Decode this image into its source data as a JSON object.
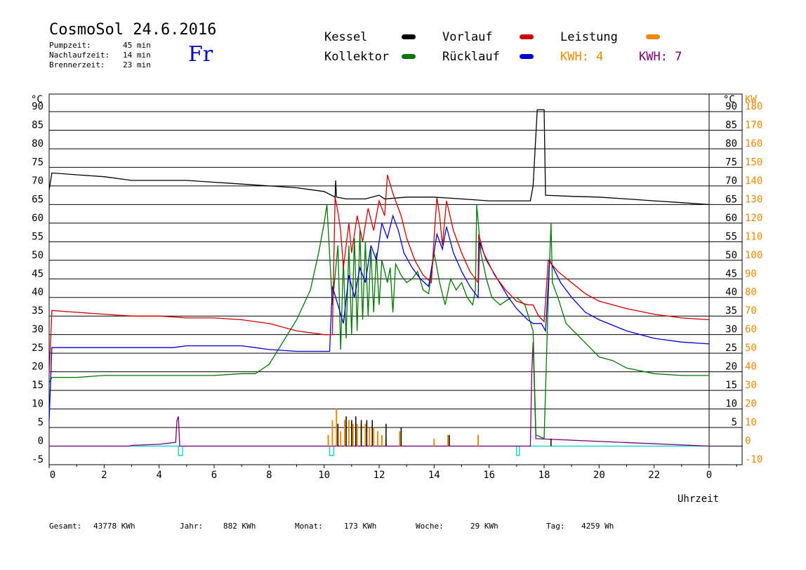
{
  "header": {
    "title": "CosmoSol 24.6.2016",
    "day": "Fr",
    "info": [
      {
        "label": "Pumpzeit:",
        "value": "45 min"
      },
      {
        "label": "Nachlaufzeit:",
        "value": "14 min"
      },
      {
        "label": "Brennerzeit:",
        "value": "23 min"
      }
    ]
  },
  "legend": {
    "kessel": "Kessel",
    "kollektor": "Kollektor",
    "vorlauf": "Vorlauf",
    "ruecklauf": "Rücklauf",
    "leistung": "Leistung",
    "kwh1": "KWH: 4",
    "kwh2": "KWH: 7"
  },
  "colors": {
    "kessel": "#000000",
    "kollektor": "#007700",
    "vorlauf": "#cc0000",
    "ruecklauf": "#0000cc",
    "leistung": "#ee8800",
    "kwh2": "#770077",
    "brenner": "#00cccc"
  },
  "footer": {
    "gesamt_label": "Gesamt:",
    "gesamt_value": "43778 KWh",
    "jahr_label": "Jahr:",
    "jahr_value": "882 KWh",
    "monat_label": "Monat:",
    "monat_value": "173 KWh",
    "woche_label": "Woche:",
    "woche_value": "29 KWh",
    "tag_label": "Tag:",
    "tag_value": "4259 Wh"
  },
  "chart_data": {
    "type": "line",
    "xlabel": "Uhrzeit",
    "ylabel_left": "°C",
    "ylabel_right_temp": "°C",
    "ylabel_right_power": "KW",
    "xlim": [
      0,
      24
    ],
    "ylim": [
      -5,
      95
    ],
    "xticks": [
      "0",
      "2",
      "4",
      "6",
      "8",
      "10",
      "12",
      "14",
      "16",
      "18",
      "20",
      "22",
      "0"
    ],
    "yticks_left": [
      "-5",
      "0",
      "5",
      "10",
      "15",
      "20",
      "25",
      "30",
      "35",
      "40",
      "45",
      "50",
      "55",
      "60",
      "65",
      "70",
      "75",
      "80",
      "85",
      "90"
    ],
    "yticks_right_temp": [
      "5",
      "10",
      "15",
      "20",
      "25",
      "30",
      "35",
      "40",
      "45",
      "50",
      "55",
      "60",
      "65",
      "70",
      "75",
      "80",
      "85",
      "90"
    ],
    "yticks_right_power": [
      "-10",
      "0",
      "10",
      "20",
      "30",
      "40",
      "50",
      "60",
      "70",
      "80",
      "90",
      "100",
      "110",
      "120",
      "130",
      "140",
      "150",
      "160",
      "170",
      "180"
    ],
    "grid": true,
    "series": [
      {
        "name": "Kessel",
        "key": "kessel",
        "points": [
          [
            0,
            69
          ],
          [
            0.1,
            73.5
          ],
          [
            1,
            73
          ],
          [
            2,
            72.5
          ],
          [
            3,
            71.5
          ],
          [
            4,
            71.5
          ],
          [
            5,
            71.5
          ],
          [
            6,
            71
          ],
          [
            7,
            70.5
          ],
          [
            8,
            70
          ],
          [
            9,
            69.5
          ],
          [
            10,
            68.5
          ],
          [
            10.4,
            67
          ],
          [
            10.42,
            71.5
          ],
          [
            10.45,
            67
          ],
          [
            10.8,
            66.5
          ],
          [
            11.5,
            66.5
          ],
          [
            12,
            67.5
          ],
          [
            12.2,
            66.5
          ],
          [
            13,
            67
          ],
          [
            14,
            67
          ],
          [
            15,
            66.5
          ],
          [
            16,
            66
          ],
          [
            17,
            66
          ],
          [
            17.5,
            66
          ],
          [
            17.6,
            70
          ],
          [
            17.75,
            90.5
          ],
          [
            18,
            90.5
          ],
          [
            18.05,
            67.5
          ],
          [
            19,
            67.2
          ],
          [
            20,
            67
          ],
          [
            21,
            66.5
          ],
          [
            22,
            66
          ],
          [
            23,
            65.5
          ],
          [
            24,
            65
          ]
        ]
      },
      {
        "name": "Vorlauf",
        "key": "vorlauf",
        "points": [
          [
            0,
            19
          ],
          [
            0.1,
            36.5
          ],
          [
            1,
            36
          ],
          [
            2,
            35.5
          ],
          [
            3,
            35
          ],
          [
            4,
            35
          ],
          [
            5,
            34.5
          ],
          [
            6,
            34.5
          ],
          [
            7,
            34
          ],
          [
            8,
            33
          ],
          [
            9,
            31
          ],
          [
            10,
            30
          ],
          [
            10.3,
            30
          ],
          [
            10.4,
            67
          ],
          [
            10.5,
            63
          ],
          [
            10.6,
            58
          ],
          [
            10.7,
            48
          ],
          [
            10.9,
            60
          ],
          [
            11,
            52
          ],
          [
            11.2,
            62
          ],
          [
            11.4,
            55
          ],
          [
            11.6,
            64
          ],
          [
            11.8,
            58
          ],
          [
            12,
            66
          ],
          [
            12.2,
            62
          ],
          [
            12.3,
            73
          ],
          [
            12.5,
            68
          ],
          [
            12.8,
            62
          ],
          [
            13,
            56
          ],
          [
            13.3,
            50
          ],
          [
            13.6,
            46
          ],
          [
            13.9,
            44
          ],
          [
            14,
            56
          ],
          [
            14.1,
            67
          ],
          [
            14.2,
            62
          ],
          [
            14.3,
            54
          ],
          [
            14.45,
            66
          ],
          [
            14.7,
            58
          ],
          [
            15,
            52
          ],
          [
            15.3,
            47
          ],
          [
            15.6,
            44
          ],
          [
            15.62,
            57
          ],
          [
            15.8,
            52
          ],
          [
            16.2,
            46
          ],
          [
            16.6,
            42
          ],
          [
            17,
            39
          ],
          [
            17.4,
            38
          ],
          [
            17.6,
            38
          ],
          [
            17.8,
            35
          ],
          [
            18,
            33.5
          ],
          [
            18.15,
            50
          ],
          [
            18.5,
            47
          ],
          [
            19,
            44
          ],
          [
            19.5,
            41
          ],
          [
            20,
            39
          ],
          [
            21,
            37
          ],
          [
            22,
            35.5
          ],
          [
            23,
            34.5
          ],
          [
            24,
            34
          ]
        ]
      },
      {
        "name": "Rücklauf",
        "key": "ruecklauf",
        "points": [
          [
            0,
            7
          ],
          [
            0.1,
            26.5
          ],
          [
            1,
            26.5
          ],
          [
            2,
            26.5
          ],
          [
            3,
            26.5
          ],
          [
            4,
            26.5
          ],
          [
            4.5,
            26.5
          ],
          [
            5,
            27
          ],
          [
            6,
            27
          ],
          [
            7,
            27
          ],
          [
            7.5,
            26.5
          ],
          [
            8,
            26
          ],
          [
            9,
            25.5
          ],
          [
            10,
            25.5
          ],
          [
            10.2,
            25.5
          ],
          [
            10.3,
            43
          ],
          [
            10.5,
            38
          ],
          [
            10.7,
            33
          ],
          [
            10.9,
            46
          ],
          [
            11.1,
            40
          ],
          [
            11.3,
            48
          ],
          [
            11.5,
            44
          ],
          [
            11.7,
            54
          ],
          [
            11.9,
            50
          ],
          [
            12.1,
            60
          ],
          [
            12.3,
            56
          ],
          [
            12.5,
            62
          ],
          [
            12.7,
            58
          ],
          [
            12.9,
            52
          ],
          [
            13.2,
            48
          ],
          [
            13.5,
            45
          ],
          [
            13.8,
            43
          ],
          [
            13.95,
            50
          ],
          [
            14.1,
            57
          ],
          [
            14.3,
            53
          ],
          [
            14.45,
            59
          ],
          [
            14.7,
            52
          ],
          [
            15,
            47
          ],
          [
            15.3,
            43
          ],
          [
            15.6,
            40
          ],
          [
            15.65,
            55
          ],
          [
            15.9,
            50
          ],
          [
            16.3,
            45
          ],
          [
            16.7,
            40
          ],
          [
            17,
            37
          ],
          [
            17.4,
            34
          ],
          [
            17.6,
            33
          ],
          [
            17.9,
            33
          ],
          [
            18.05,
            31
          ],
          [
            18.2,
            50
          ],
          [
            18.6,
            44
          ],
          [
            19,
            40
          ],
          [
            19.5,
            36
          ],
          [
            20,
            34
          ],
          [
            21,
            31
          ],
          [
            22,
            29
          ],
          [
            23,
            28
          ],
          [
            24,
            27.5
          ]
        ]
      },
      {
        "name": "Kollektor",
        "key": "kollektor",
        "points": [
          [
            0,
            17
          ],
          [
            0.1,
            18.5
          ],
          [
            1,
            18.5
          ],
          [
            2,
            19
          ],
          [
            3,
            19
          ],
          [
            4,
            19
          ],
          [
            5,
            19
          ],
          [
            6,
            19
          ],
          [
            7,
            19.5
          ],
          [
            7.5,
            19.5
          ],
          [
            8,
            22
          ],
          [
            8.5,
            28
          ],
          [
            9,
            34
          ],
          [
            9.5,
            42
          ],
          [
            9.8,
            52
          ],
          [
            10,
            60
          ],
          [
            10.1,
            65
          ],
          [
            10.3,
            38
          ],
          [
            10.5,
            54
          ],
          [
            10.6,
            26
          ],
          [
            10.7,
            50
          ],
          [
            10.8,
            29
          ],
          [
            10.9,
            54
          ],
          [
            11,
            30
          ],
          [
            11.1,
            56
          ],
          [
            11.2,
            31
          ],
          [
            11.3,
            58
          ],
          [
            11.4,
            34
          ],
          [
            11.5,
            55
          ],
          [
            11.6,
            35
          ],
          [
            11.7,
            53
          ],
          [
            11.8,
            36
          ],
          [
            11.9,
            52
          ],
          [
            12,
            38
          ],
          [
            12.1,
            50
          ],
          [
            12.3,
            44
          ],
          [
            12.4,
            48
          ],
          [
            12.5,
            36
          ],
          [
            12.6,
            49
          ],
          [
            12.8,
            46
          ],
          [
            13,
            44
          ],
          [
            13.2,
            45
          ],
          [
            13.4,
            47
          ],
          [
            13.6,
            42
          ],
          [
            13.8,
            41
          ],
          [
            14,
            52
          ],
          [
            14.2,
            44
          ],
          [
            14.4,
            38
          ],
          [
            14.6,
            45
          ],
          [
            14.8,
            42
          ],
          [
            15,
            44
          ],
          [
            15.2,
            40
          ],
          [
            15.4,
            38
          ],
          [
            15.5,
            42
          ],
          [
            15.55,
            65
          ],
          [
            15.7,
            52
          ],
          [
            15.9,
            45
          ],
          [
            16.1,
            40
          ],
          [
            16.4,
            38
          ],
          [
            16.8,
            40
          ],
          [
            17,
            40
          ],
          [
            17.3,
            38
          ],
          [
            17.6,
            31
          ],
          [
            17.7,
            3
          ],
          [
            18,
            2
          ],
          [
            18.15,
            40
          ],
          [
            18.25,
            60
          ],
          [
            18.3,
            44
          ],
          [
            18.5,
            40
          ],
          [
            18.8,
            33
          ],
          [
            19.2,
            30
          ],
          [
            19.6,
            27
          ],
          [
            20,
            24
          ],
          [
            20.5,
            23
          ],
          [
            21,
            21
          ],
          [
            22,
            19.5
          ],
          [
            23,
            19
          ],
          [
            24,
            19
          ]
        ]
      },
      {
        "name": "KWH: 7",
        "key": "kwh2",
        "points": [
          [
            0,
            0
          ],
          [
            2.9,
            0
          ],
          [
            3,
            0.2
          ],
          [
            4,
            0.5
          ],
          [
            4.6,
            1
          ],
          [
            4.65,
            7
          ],
          [
            4.7,
            8
          ],
          [
            4.75,
            0
          ],
          [
            17.5,
            0
          ],
          [
            17.55,
            20
          ],
          [
            17.6,
            28
          ],
          [
            17.7,
            2
          ],
          [
            24,
            0
          ]
        ]
      },
      {
        "name": "Brenner",
        "key": "brenner",
        "points": [
          [
            0,
            0
          ],
          [
            4.7,
            0
          ],
          [
            4.7,
            -2.5
          ],
          [
            4.85,
            -2.5
          ],
          [
            4.85,
            0
          ],
          [
            10.2,
            0
          ],
          [
            10.2,
            -2.5
          ],
          [
            10.35,
            -2.5
          ],
          [
            10.35,
            0
          ],
          [
            17.0,
            0
          ],
          [
            17.0,
            -2.5
          ],
          [
            17.1,
            -2.5
          ],
          [
            17.1,
            0
          ],
          [
            24,
            0
          ]
        ]
      }
    ],
    "leistung_bars": [
      [
        10.15,
        3
      ],
      [
        10.3,
        7
      ],
      [
        10.45,
        10
      ],
      [
        10.6,
        4
      ],
      [
        10.75,
        7
      ],
      [
        10.9,
        7
      ],
      [
        11.05,
        6
      ],
      [
        11.2,
        6
      ],
      [
        11.35,
        6
      ],
      [
        11.5,
        6
      ],
      [
        11.65,
        5
      ],
      [
        11.8,
        5
      ],
      [
        11.95,
        4
      ],
      [
        12.1,
        3
      ],
      [
        12.25,
        2
      ],
      [
        12.75,
        4
      ],
      [
        14,
        2
      ],
      [
        14.5,
        3
      ],
      [
        15.6,
        3
      ]
    ],
    "kessel_bars": [
      [
        10.45,
        6
      ],
      [
        10.75,
        8
      ],
      [
        10.95,
        7
      ],
      [
        11.1,
        8
      ],
      [
        11.3,
        7
      ],
      [
        11.5,
        7
      ],
      [
        11.7,
        7
      ],
      [
        12.2,
        6
      ],
      [
        12.75,
        5
      ],
      [
        14.5,
        3
      ],
      [
        18.2,
        2
      ]
    ],
    "leistung_right_scale": {
      "min": -10,
      "max": 190
    }
  }
}
